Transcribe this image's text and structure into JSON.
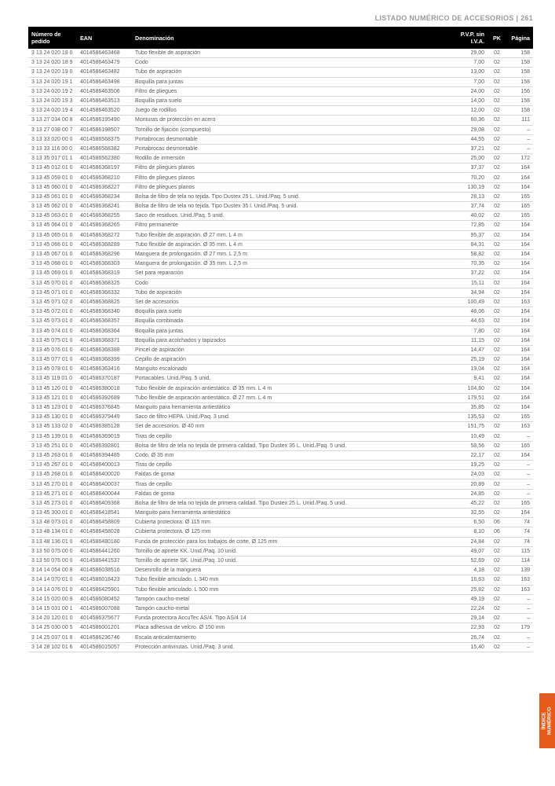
{
  "header": {
    "text": "LISTADO NUMÉRICO DE ACCESORIOS | 261"
  },
  "table": {
    "columns": {
      "numero": "Número de pedido",
      "ean": "EAN",
      "denominacion": "Denominación",
      "pvp": "P.V.P. sin I.V.A.",
      "pk": "PK",
      "pagina": "Página"
    },
    "rows": [
      [
        "3 13 24 020 18 0",
        "4014586463468",
        "Tubo flexible de aspiración",
        "29,00",
        "02",
        "158"
      ],
      [
        "3 13 24 020 18 9",
        "4014586463479",
        "Codo",
        "7,00",
        "02",
        "158"
      ],
      [
        "3 13 24 020 19 0",
        "4014586463482",
        "Tubo de aspiración",
        "13,00",
        "02",
        "158"
      ],
      [
        "3 13 24 020 19 1",
        "4014586463498",
        "Boquilla para juntas",
        "7,00",
        "02",
        "158"
      ],
      [
        "3 13 24 020 19 2",
        "4014586463506",
        "Filtro de pliegues",
        "24,00",
        "02",
        "156"
      ],
      [
        "3 13 24 020 19 3",
        "4014586463513",
        "Boquilla para suelo",
        "14,00",
        "02",
        "158"
      ],
      [
        "3 13 24 020 19 4",
        "4014586463520",
        "Juego de rodillos",
        "12,00",
        "02",
        "158"
      ],
      [
        "3 13 27 034 00 8",
        "4014586195490",
        "Monturas de protección en acero",
        "60,36",
        "02",
        "111"
      ],
      [
        "3 13 27 038 00 7",
        "4014586198507",
        "Tornillo de fijación (compuesto)",
        "29,08",
        "02",
        "–"
      ],
      [
        "3 13 33 020 00 0",
        "4014586568375",
        "Portabrocas desmontable",
        "44,55",
        "02",
        "–"
      ],
      [
        "3 13 33 116 00 0",
        "4014586568382",
        "Portabrocas desmontable",
        "37,21",
        "02",
        "–"
      ],
      [
        "3 13 35 017 01 1",
        "4014586562380",
        "Rodillo de inmersión",
        "25,00",
        "02",
        "172"
      ],
      [
        "3 13 45 012 01 0",
        "4014586368197",
        "Filtro de pliegues planos",
        "37,37",
        "02",
        "164"
      ],
      [
        "3 13 45 059 01 0",
        "4014586368210",
        "Filtro de pliegues planos",
        "70,20",
        "02",
        "164"
      ],
      [
        "3 13 45 060 01 0",
        "4014586368227",
        "Filtro de pliegues planos",
        "130,19",
        "02",
        "164"
      ],
      [
        "3 13 45 061 01 0",
        "4014586368234",
        "Bolsa de filtro de tela no tejida. Tipo Dustex 25 L. Unid./Paq. 5 unid.",
        "28,13",
        "02",
        "165"
      ],
      [
        "3 13 45 062 01 0",
        "4014586368241",
        "Bolsa de filtro de tela no tejida. Tipo Dustex 35 l. Unid./Paq. 5 unid.",
        "37,74",
        "02",
        "165"
      ],
      [
        "3 13 45 063 01 0",
        "4014586368255",
        "Saco de residuos. Unid./Paq. 5 unid.",
        "40,02",
        "02",
        "165"
      ],
      [
        "3 13 45 064 01 0",
        "4014586368265",
        "Filtro permanente",
        "72,85",
        "02",
        "164"
      ],
      [
        "3 13 45 065 01 0",
        "4014586368272",
        "Tubo flexible de aspiración. Ø 27 mm. L 4 m",
        "95,37",
        "02",
        "164"
      ],
      [
        "3 13 45 066 01 0",
        "4014586368289",
        "Tubo flexible de aspiración. Ø 35 mm. L 4 m",
        "84,31",
        "02",
        "164"
      ],
      [
        "3 13 45 067 01 0",
        "4014586368296",
        "Manguera de prolongación. Ø 27 mm. L 2,5 m",
        "58,82",
        "02",
        "164"
      ],
      [
        "3 13 45 068 01 0",
        "4014586368303",
        "Manguera de prolongación. Ø 35 mm. L 2,5 m",
        "70,35",
        "02",
        "164"
      ],
      [
        "3 13 45 069 01 0",
        "4014586368319",
        "Set para reparación",
        "37,22",
        "02",
        "164"
      ],
      [
        "3 13 45 070 01 0",
        "4014586368325",
        "Codo",
        "15,11",
        "02",
        "164"
      ],
      [
        "3 13 45 071 01 0",
        "4014586368332",
        "Tubo de aspiración",
        "34,94",
        "02",
        "164"
      ],
      [
        "3 13 45 071 02 0",
        "4014586368825",
        "Set de accesorios",
        "100,49",
        "02",
        "163"
      ],
      [
        "3 13 45 072 01 0",
        "4014586368340",
        "Boquilla para suelo",
        "48,06",
        "02",
        "164"
      ],
      [
        "3 13 45 073 01 0",
        "4014586368357",
        "Boquilla combinada",
        "44,63",
        "02",
        "164"
      ],
      [
        "3 13 45 074 01 0",
        "4014586368364",
        "Boquilla para juntas",
        "7,80",
        "02",
        "164"
      ],
      [
        "3 13 45 075 01 0",
        "4014586368371",
        "Boquilla para acolchados y tapizados",
        "11,15",
        "02",
        "164"
      ],
      [
        "3 13 45 076 01 0",
        "4014586368388",
        "Pincel de aspiración",
        "14,47",
        "02",
        "164"
      ],
      [
        "3 13 45 077 01 0",
        "4014586368399",
        "Cepillo de aspiración",
        "25,19",
        "02",
        "164"
      ],
      [
        "3 13 45 078 01 0",
        "4014586363416",
        "Manguito escalonado",
        "19,04",
        "02",
        "164"
      ],
      [
        "3 13 45 119 01 0",
        "4014586370187",
        "Portacables. Unid./Paq. 5 unid.",
        "9,41",
        "02",
        "164"
      ],
      [
        "3 13 45 120 01 0",
        "4014586380018",
        "Tubo flexible de aspiración antiestático. Ø 35 mm. L 4 m",
        "104,80",
        "02",
        "164"
      ],
      [
        "3 13 45 121 01 0",
        "4014586392689",
        "Tubo flexible de aspiración antiestático. Ø 27 mm. L 4 m",
        "179,51",
        "02",
        "164"
      ],
      [
        "3 13 45 123 01 0",
        "4014586376845",
        "Manguito para herramienta antiestático",
        "35,85",
        "02",
        "164"
      ],
      [
        "3 13 45 130 01 0",
        "4014586379449",
        "Saco de filtro HEPA. Unid./Paq. 3 unid.",
        "135,53",
        "02",
        "165"
      ],
      [
        "3 13 45 133 02 0",
        "4014586385128",
        "Set de accesorios. Ø 40 mm",
        "151,75",
        "02",
        "163"
      ],
      [
        "3 13 45 139 01 0",
        "4014586369019",
        "Tiras de cepillo",
        "10,49",
        "02",
        "–"
      ],
      [
        "3 13 45 251 01 0",
        "4014586392801",
        "Bolsa de filtro de tela no tejida de primera calidad. Tipo Dustex 35 L. Unid./Paq. 5 unid.",
        "58,56",
        "02",
        "165"
      ],
      [
        "3 13 45 263 01 0",
        "4014586394485",
        "Codo. Ø 35 mm",
        "22,17",
        "02",
        "164"
      ],
      [
        "3 13 45 267 01 0",
        "4014586400013",
        "Tiras de cepillo",
        "19,25",
        "02",
        "–"
      ],
      [
        "3 13 45 268 01 0",
        "4014586400020",
        "Faldas de goma",
        "24,03",
        "02",
        "–"
      ],
      [
        "3 13 45 270 01 0",
        "4014586400037",
        "Tiras de cepillo",
        "20,89",
        "02",
        "–"
      ],
      [
        "3 13 45 271 01 0",
        "4014586400044",
        "Faldas de goma",
        "24,85",
        "02",
        "–"
      ],
      [
        "3 13 45 273 01 0",
        "4014586409368",
        "Bolsa de filtro de tela no tejida de primera calidad. Tipo Dustex 25 L. Unid./Paq. 5 unid.",
        "45,22",
        "02",
        "165"
      ],
      [
        "3 13 45 300 01 0",
        "4014586418541",
        "Manguito para herramienta antiestático",
        "32,55",
        "02",
        "164"
      ],
      [
        "3 13 48 073 01 0",
        "4014586458809",
        "Cubierta protectora. Ø 115 mm",
        "6,50",
        "06",
        "74"
      ],
      [
        "3 13 48 134 01 0",
        "4014586458028",
        "Cubierta protectora. Ø 125 mm",
        "8,10",
        "06",
        "74"
      ],
      [
        "3 13 48 136 01 0",
        "4014586480180",
        "Funda de protección para los trabajos de corte. Ø 125 mm",
        "24,84",
        "02",
        "74"
      ],
      [
        "3 13 50 075 00 0",
        "4014586441260",
        "Tornillo de apriete KK. Unid./Paq. 10 unid.",
        "49,07",
        "02",
        "115"
      ],
      [
        "3 13 50 076 00 0",
        "4014586441537",
        "Tornillo de apriete SK. Unid./Paq. 10 unid.",
        "52,69",
        "02",
        "114"
      ],
      [
        "3 14 14 054 00 8",
        "4014586038516",
        "Desenrollo de la manguera",
        "4,18",
        "02",
        "139"
      ],
      [
        "3 14 14 070 01 0",
        "4014586018423",
        "Tubo flexible articulado. L 340 mm",
        "16,63",
        "02",
        "163"
      ],
      [
        "3 14 14 076 01 0",
        "4014586425901",
        "Tubo flexible articulado. L 500 mm",
        "25,82",
        "02",
        "163"
      ],
      [
        "3 14 15 020 00 9",
        "4014586080452",
        "Tampón caucho-metal",
        "49,19",
        "02",
        "–"
      ],
      [
        "3 14 15 031 00 1",
        "4014586007088",
        "Tampón caucho-metal",
        "22,24",
        "02",
        "–"
      ],
      [
        "3 14 20 120 01 0",
        "4014586375677",
        "Funda protectora AccuTec AS/4. Tipo AS/4 14",
        "29,14",
        "02",
        "–"
      ],
      [
        "3 14 25 030 00 5",
        "4014586001201",
        "Placa adhesiva de velcro. Ø 150 mm",
        "22,93",
        "02",
        "179"
      ],
      [
        "3 14 25 037 01 8",
        "4014586236746",
        "Escala anticalentamiento",
        "26,74",
        "02",
        "–"
      ],
      [
        "3 14 28 102 01 6",
        "4014586015057",
        "Protección antivirutas. Unid./Paq. 3 unid.",
        "15,40",
        "02",
        "–"
      ]
    ]
  },
  "sideTab": {
    "line1": "ÍNDICE",
    "line2": "NUMÉRICO"
  }
}
